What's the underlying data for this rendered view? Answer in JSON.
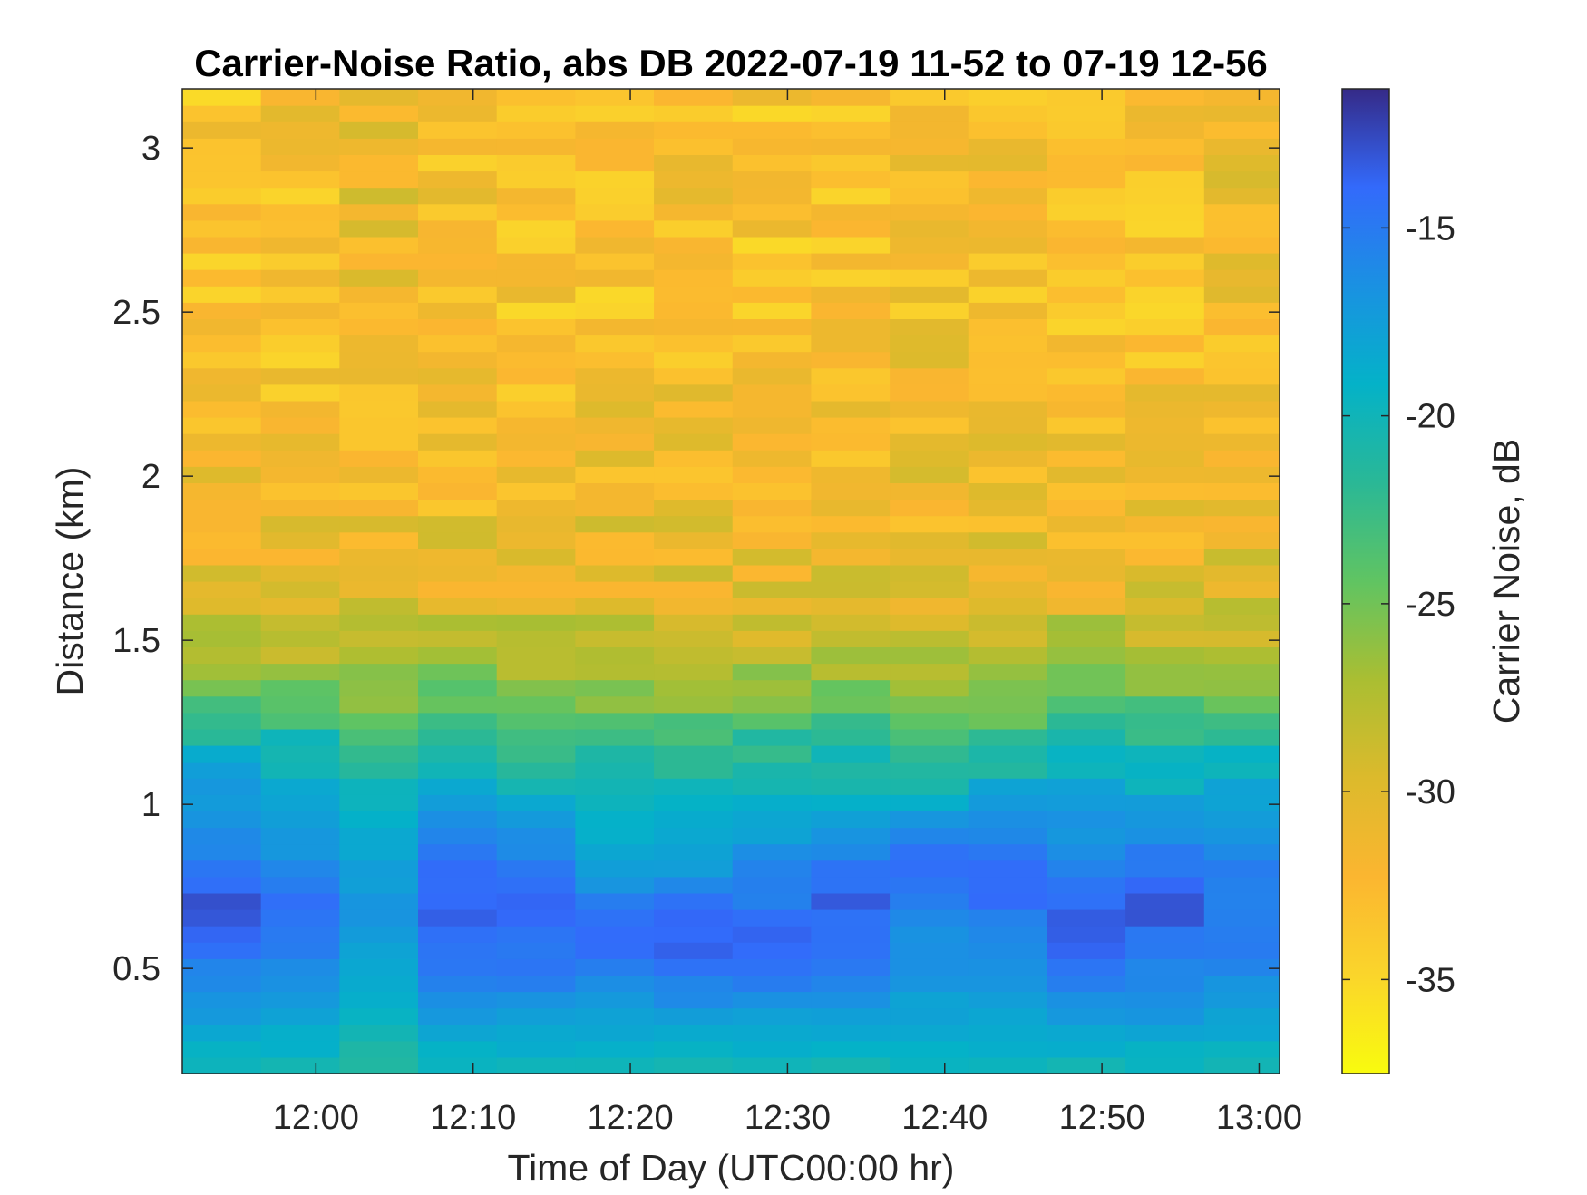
{
  "chart_data": {
    "type": "heatmap",
    "title": "Carrier-Noise Ratio, abs DB 2022-07-19 11-52 to 07-19 12-56",
    "xlabel": "Time of Day (UTC00:00 hr)",
    "ylabel": "Distance (km)",
    "colorbar_label": "Carrier Noise, dB",
    "colormap": "parula",
    "colormap_direction": "reversed (yellow = low, dark blue = high)",
    "x_tick_labels": [
      "12:00",
      "12:10",
      "12:20",
      "12:30",
      "12:40",
      "12:50",
      "13:00"
    ],
    "x_tick_minutes": [
      720,
      730,
      740,
      750,
      760,
      770,
      780
    ],
    "x_range_minutes": [
      711.5,
      781.3
    ],
    "y_ticks": [
      0.5,
      1,
      1.5,
      2,
      2.5,
      3
    ],
    "y_tick_labels": [
      "0.5",
      "1",
      "1.5",
      "2",
      "2.5",
      "3"
    ],
    "ylim": [
      0.18,
      3.18
    ],
    "c_ticks": [
      -35,
      -30,
      -25,
      -20,
      -15
    ],
    "c_tick_labels": [
      "-35",
      "-30",
      "-25",
      "-20",
      "-15"
    ],
    "clim": [
      -37.5,
      -11.3
    ],
    "column_start_minutes": [
      711.5,
      716.5,
      721.5,
      726.5,
      731.5,
      736.5,
      741.5,
      746.5,
      751.5,
      756.5,
      761.5,
      766.5,
      771.5,
      776.5
    ],
    "column_end_minutes": 781.3,
    "range_gate_km": 0.05,
    "profile_distance_km": [
      0.2,
      0.4,
      0.5,
      0.6,
      0.7,
      0.8,
      0.9,
      1.0,
      1.1,
      1.2,
      1.3,
      1.4,
      1.5,
      1.6,
      1.7,
      1.8,
      2.0,
      2.2,
      2.4,
      2.6,
      2.8,
      3.0,
      3.18
    ],
    "columns": [
      {
        "time": "11:55",
        "values_db": [
          -20,
          -17,
          -15.5,
          -14,
          -13,
          -15,
          -16,
          -17,
          -18.5,
          -20.5,
          -23.5,
          -26,
          -28,
          -29.5,
          -30.5,
          -31,
          -32,
          -32.5,
          -33,
          -33,
          -33,
          -33,
          -33
        ]
      },
      {
        "time": "12:00",
        "values_db": [
          -20,
          -17,
          -16,
          -15,
          -14.5,
          -16,
          -17,
          -18,
          -19.5,
          -21,
          -24,
          -26.5,
          -28,
          -30,
          -31,
          -31.5,
          -32,
          -32.5,
          -33,
          -33,
          -32.5,
          -32.5,
          -32.5
        ]
      },
      {
        "time": "12:05",
        "values_db": [
          -21,
          -19,
          -18.5,
          -17.5,
          -17,
          -17.5,
          -18.5,
          -19.5,
          -21,
          -22.5,
          -25,
          -27,
          -28.5,
          -29.5,
          -30.5,
          -31,
          -31.5,
          -32,
          -32,
          -31.5,
          -31,
          -31.5,
          -31.5
        ]
      },
      {
        "time": "12:10",
        "values_db": [
          -20,
          -16.5,
          -15,
          -14,
          -13.5,
          -14,
          -15.5,
          -17.5,
          -19.5,
          -21.5,
          -24,
          -26,
          -28,
          -29.5,
          -30.5,
          -31,
          -32,
          -32.5,
          -33,
          -33,
          -32,
          -32.5,
          -32.5
        ]
      },
      {
        "time": "12:15",
        "values_db": [
          -20,
          -16.5,
          -15,
          -14.5,
          -14,
          -15,
          -16.5,
          -18.5,
          -20.5,
          -22,
          -24.5,
          -26.5,
          -28,
          -29.5,
          -30.5,
          -31,
          -32,
          -32.5,
          -33,
          -33,
          -33.5,
          -34,
          -34
        ]
      },
      {
        "time": "12:20",
        "values_db": [
          -20,
          -17,
          -15,
          -14,
          -14.5,
          -18,
          -19,
          -20,
          -21.5,
          -23,
          -25,
          -27,
          -28.5,
          -29.5,
          -30.5,
          -31,
          -31.5,
          -32,
          -32.5,
          -33,
          -33,
          -32.5,
          -32.5
        ]
      },
      {
        "time": "12:25",
        "values_db": [
          -20,
          -16.5,
          -14.5,
          -13.5,
          -14.5,
          -17,
          -18,
          -19.5,
          -21,
          -22.5,
          -25,
          -27,
          -28.5,
          -29.5,
          -30.5,
          -31,
          -31.5,
          -32,
          -32.5,
          -32.5,
          -32,
          -32.5,
          -32.5
        ]
      },
      {
        "time": "12:30",
        "values_db": [
          -20,
          -17,
          -14.5,
          -13.5,
          -15.5,
          -16,
          -17.5,
          -19,
          -20.5,
          -22,
          -24.5,
          -26.5,
          -28.5,
          -30,
          -31,
          -31.5,
          -32,
          -32.5,
          -33,
          -33,
          -33,
          -33,
          -33
        ]
      },
      {
        "time": "12:35",
        "values_db": [
          -20,
          -16.5,
          -15,
          -14.5,
          -13.5,
          -14.5,
          -16.5,
          -18.5,
          -20.5,
          -22,
          -24.5,
          -26.5,
          -28,
          -29.5,
          -30.5,
          -31,
          -31.5,
          -32,
          -32.5,
          -33,
          -33,
          -33.5,
          -33.5
        ]
      },
      {
        "time": "12:40",
        "values_db": [
          -20,
          -17.5,
          -17,
          -16.5,
          -15,
          -14,
          -15.5,
          -18.5,
          -21.5,
          -23,
          -25,
          -27,
          -28.5,
          -29.5,
          -30.5,
          -31,
          -31.5,
          -32,
          -32,
          -32.5,
          -32.5,
          -32.5,
          -32.5
        ]
      },
      {
        "time": "12:45",
        "values_db": [
          -20,
          -17.5,
          -17,
          -16,
          -14.5,
          -14,
          -15.5,
          -17.5,
          -20.5,
          -22.5,
          -24.5,
          -26.5,
          -28,
          -29.5,
          -30.5,
          -31,
          -31.5,
          -32,
          -32.5,
          -33,
          -32.5,
          -32.5,
          -32.5
        ]
      },
      {
        "time": "12:50",
        "values_db": [
          -20,
          -16.5,
          -14.5,
          -13.5,
          -14,
          -15.5,
          -16.5,
          -17.5,
          -19.5,
          -21.5,
          -24,
          -26,
          -27.5,
          -29,
          -30.5,
          -31,
          -31.5,
          -32,
          -32.5,
          -33,
          -33,
          -33,
          -33
        ]
      },
      {
        "time": "12:55",
        "values_db": [
          -20,
          -16.5,
          -15.5,
          -14.5,
          -12.5,
          -14.5,
          -16,
          -17.5,
          -19.5,
          -21.5,
          -24,
          -26,
          -28,
          -29.5,
          -30.5,
          -31,
          -31.5,
          -32,
          -32.5,
          -33,
          -32.5,
          -32.5,
          -32.5
        ]
      },
      {
        "time": "13:00",
        "values_db": [
          -20,
          -17,
          -16,
          -15,
          -15,
          -15.5,
          -16.5,
          -18,
          -19.5,
          -21.5,
          -24,
          -26,
          -28,
          -29.5,
          -30.5,
          -31,
          -31.5,
          -32,
          -32,
          -32,
          -31.5,
          -31.5,
          -31.5
        ]
      }
    ]
  }
}
